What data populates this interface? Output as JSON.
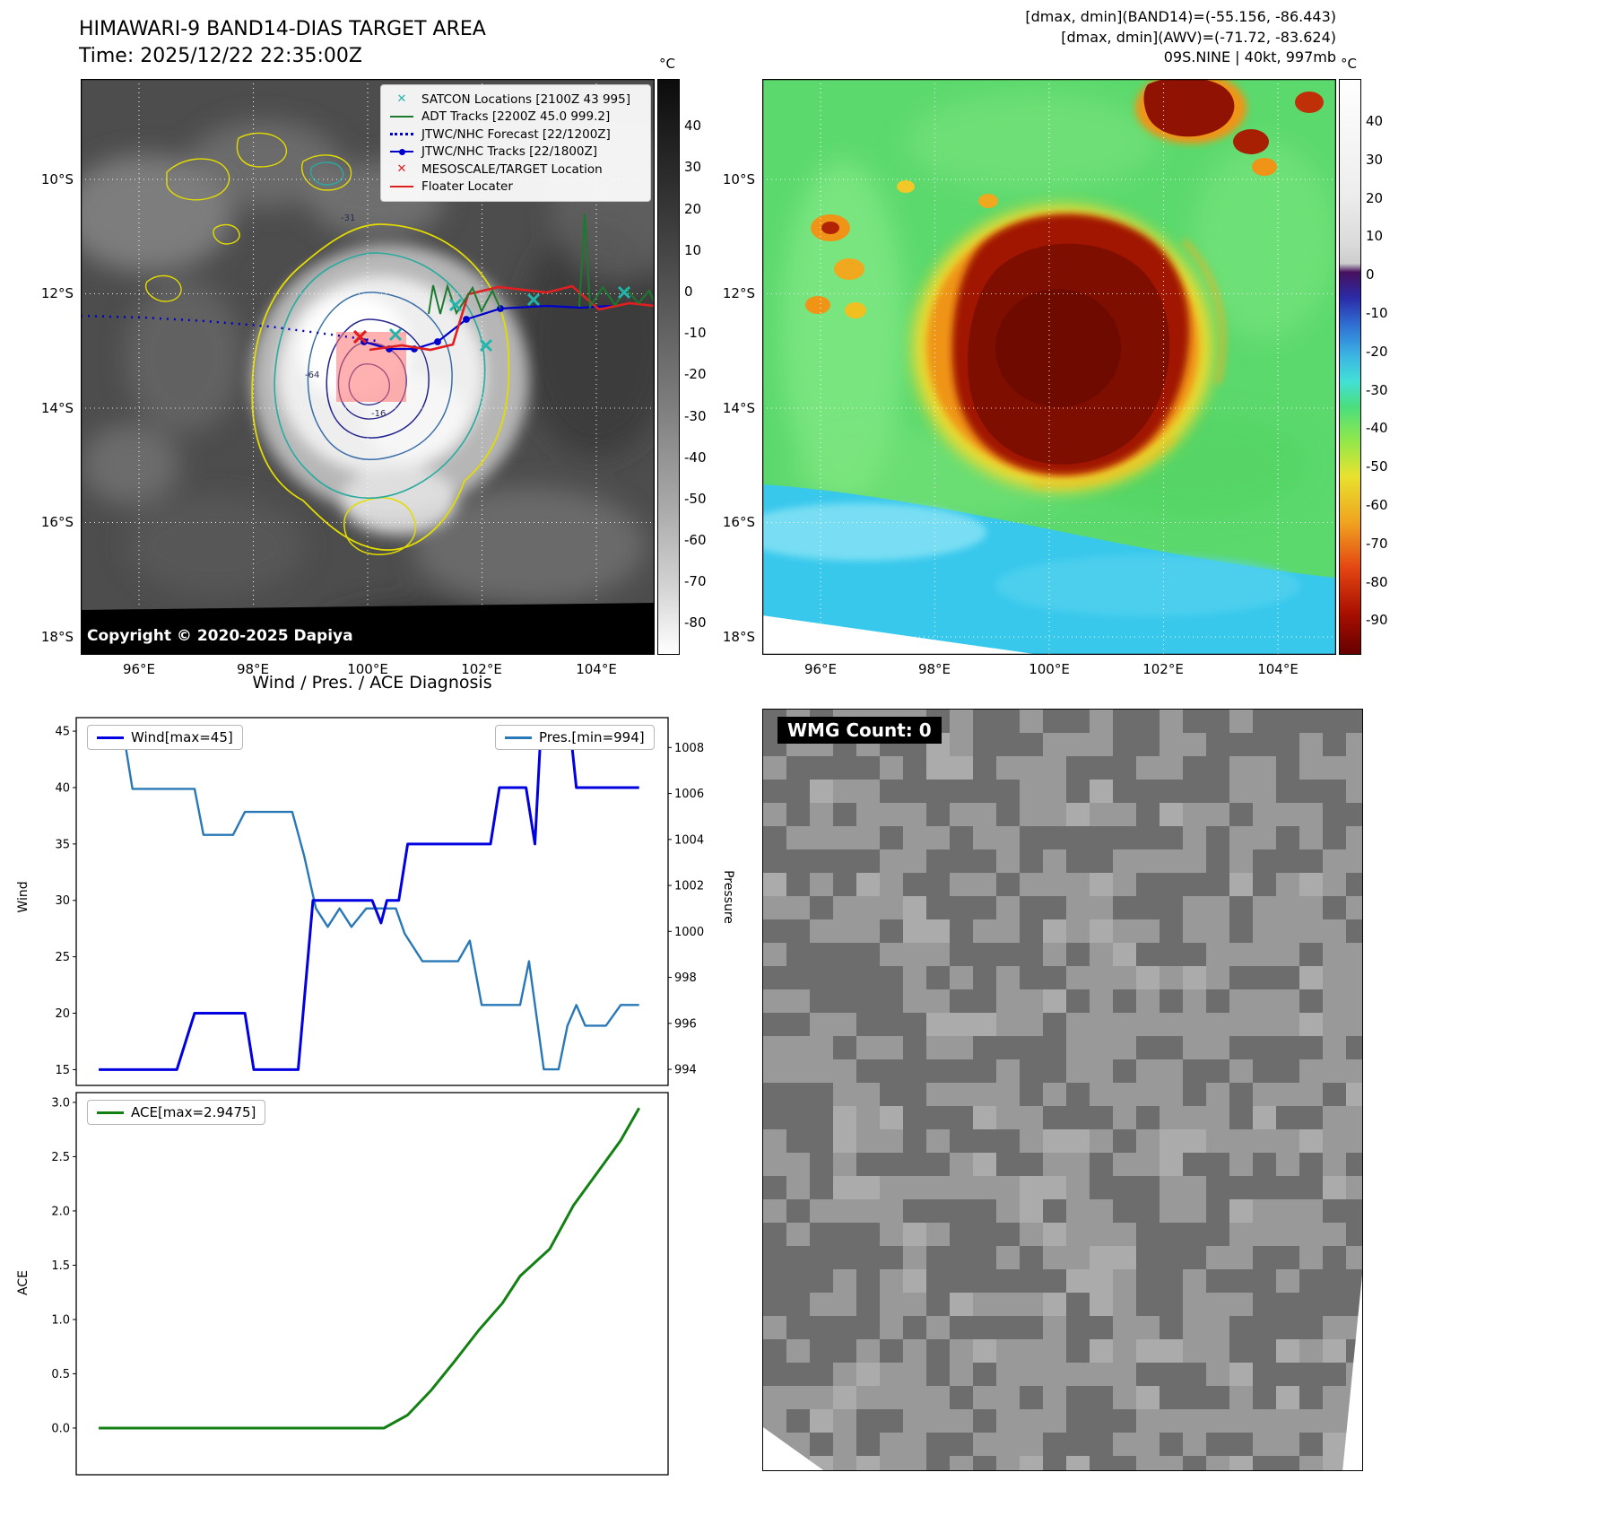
{
  "panels": {
    "band14": {
      "title1": "HIMAWARI-9 BAND14-DIAS TARGET AREA",
      "title2": "Time: 2025/12/22 22:35:00Z",
      "copyright": "Copyright © 2020-2025 Dapiya",
      "legend": [
        {
          "label": "SATCON Locations [2100Z 43 995]",
          "marker": "x",
          "color": "#22b5ab"
        },
        {
          "label": "ADT Tracks [2200Z 45.0 999.2]",
          "marker": "line",
          "color": "#1a7a2e"
        },
        {
          "label": "JTWC/NHC Forecast [22/1200Z]",
          "marker": "dotted-line",
          "color": "#0000cc"
        },
        {
          "label": "JTWC/NHC Tracks [22/1800Z]",
          "marker": "line-dot",
          "color": "#0000cc"
        },
        {
          "label": "MESOSCALE/TARGET Location",
          "marker": "x",
          "color": "#e02020"
        },
        {
          "label": "Floater Locater",
          "marker": "line",
          "color": "#e02020"
        }
      ],
      "lat_ticks": [
        "10°S",
        "12°S",
        "14°S",
        "16°S",
        "18°S"
      ],
      "lon_ticks": [
        "96°E",
        "98°E",
        "100°E",
        "102°E",
        "104°E"
      ],
      "colorbar": {
        "unit": "°C",
        "ticks": [
          "40",
          "30",
          "20",
          "10",
          "0",
          "-10",
          "-20",
          "-30",
          "-40",
          "-50",
          "-60",
          "-70",
          "-80"
        ]
      },
      "contour_labels": [
        "-31",
        "-64",
        "-16"
      ]
    },
    "awv": {
      "header1": "[dmax, dmin](BAND14)=(-55.156, -86.443)",
      "header2": "[dmax, dmin](AWV)=(-71.72, -83.624)",
      "header3": "09S.NINE | 40kt, 997mb",
      "lat_ticks": [
        "10°S",
        "12°S",
        "14°S",
        "16°S",
        "18°S"
      ],
      "lon_ticks": [
        "96°E",
        "98°E",
        "100°E",
        "102°E",
        "104°E"
      ],
      "colorbar": {
        "unit": "°C",
        "ticks": [
          "40",
          "30",
          "20",
          "10",
          "0",
          "-10",
          "-20",
          "-30",
          "-40",
          "-50",
          "-60",
          "-70",
          "-80",
          "-90"
        ]
      }
    },
    "diagnosis": {
      "title": "Wind / Pres. / ACE Diagnosis"
    },
    "wmg": {
      "label": "WMG Count: 0"
    }
  },
  "chart_data": [
    {
      "id": "wind_pres",
      "type": "line",
      "title": "Wind / Pres. / ACE Diagnosis",
      "ylabel_left": "Wind",
      "ylabel_right": "Pressure",
      "yticks_left": [
        15,
        20,
        25,
        30,
        35,
        40,
        45
      ],
      "yticks_right": [
        994,
        996,
        998,
        1000,
        1002,
        1004,
        1006,
        1008
      ],
      "ylim_left": [
        13.6,
        46.2
      ],
      "ylim_right": [
        993.3,
        1009.3
      ],
      "xlim": [
        0,
        1
      ],
      "decimals_left": 0,
      "decimals_right": 0,
      "grid": false,
      "legend": [
        {
          "label": "Wind[max=45]",
          "color": "#0000e0"
        },
        {
          "label": "Pres.[min=994]",
          "color": "#2878b8"
        }
      ],
      "series": [
        {
          "name": "Pres",
          "axis": "right",
          "color": "#2878b8",
          "width": 2.4,
          "points": [
            [
              0.038,
              1008.6
            ],
            [
              0.08,
              1008.6
            ],
            [
              0.095,
              1006.2
            ],
            [
              0.2,
              1006.2
            ],
            [
              0.215,
              1004.2
            ],
            [
              0.265,
              1004.2
            ],
            [
              0.285,
              1005.2
            ],
            [
              0.365,
              1005.2
            ],
            [
              0.385,
              1003.3
            ],
            [
              0.405,
              1001.0
            ],
            [
              0.425,
              1000.2
            ],
            [
              0.445,
              1001.0
            ],
            [
              0.465,
              1000.2
            ],
            [
              0.49,
              1001.0
            ],
            [
              0.54,
              1001.0
            ],
            [
              0.555,
              999.9
            ],
            [
              0.585,
              998.7
            ],
            [
              0.645,
              998.7
            ],
            [
              0.665,
              999.6
            ],
            [
              0.685,
              996.8
            ],
            [
              0.75,
              996.8
            ],
            [
              0.765,
              998.7
            ],
            [
              0.79,
              994.0
            ],
            [
              0.815,
              994.0
            ],
            [
              0.83,
              995.9
            ],
            [
              0.845,
              996.8
            ],
            [
              0.86,
              995.9
            ],
            [
              0.895,
              995.9
            ],
            [
              0.92,
              996.8
            ],
            [
              0.951,
              996.8
            ]
          ]
        },
        {
          "name": "Wind",
          "axis": "left",
          "color": "#0000e0",
          "width": 3,
          "points": [
            [
              0.038,
              15
            ],
            [
              0.17,
              15
            ],
            [
              0.2,
              20
            ],
            [
              0.285,
              20
            ],
            [
              0.3,
              15
            ],
            [
              0.375,
              15
            ],
            [
              0.4,
              30
            ],
            [
              0.5,
              30
            ],
            [
              0.515,
              28
            ],
            [
              0.525,
              30
            ],
            [
              0.545,
              30
            ],
            [
              0.56,
              35
            ],
            [
              0.7,
              35
            ],
            [
              0.715,
              40
            ],
            [
              0.76,
              40
            ],
            [
              0.775,
              35
            ],
            [
              0.785,
              45
            ],
            [
              0.835,
              45
            ],
            [
              0.845,
              40
            ],
            [
              0.951,
              40
            ]
          ]
        }
      ]
    },
    {
      "id": "ace",
      "type": "line",
      "ylabel_left": "ACE",
      "yticks_left": [
        0.0,
        0.5,
        1.0,
        1.5,
        2.0,
        2.5,
        3.0
      ],
      "ylim_left": [
        -0.43,
        3.09
      ],
      "xlim": [
        0,
        1
      ],
      "decimals_left": 1,
      "grid": false,
      "legend": [
        {
          "label": "ACE[max=2.9475]",
          "color": "#128012"
        }
      ],
      "series": [
        {
          "name": "ACE",
          "axis": "left",
          "color": "#128012",
          "width": 3,
          "points": [
            [
              0.038,
              0
            ],
            [
              0.52,
              0
            ],
            [
              0.56,
              0.12
            ],
            [
              0.6,
              0.35
            ],
            [
              0.64,
              0.62
            ],
            [
              0.68,
              0.9
            ],
            [
              0.72,
              1.15
            ],
            [
              0.75,
              1.4
            ],
            [
              0.78,
              1.55
            ],
            [
              0.8,
              1.65
            ],
            [
              0.84,
              2.05
            ],
            [
              0.88,
              2.35
            ],
            [
              0.92,
              2.65
            ],
            [
              0.951,
              2.9475
            ]
          ]
        }
      ]
    }
  ]
}
